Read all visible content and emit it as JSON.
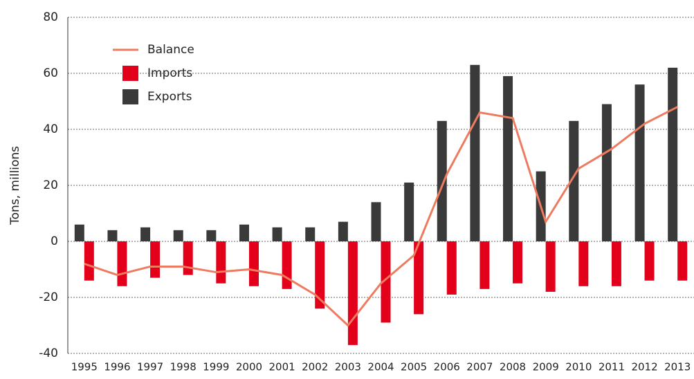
{
  "chart_data": {
    "type": "bar",
    "y_label": "Tons, millions",
    "categories": [
      "1995",
      "1996",
      "1997",
      "1998",
      "1999",
      "2000",
      "2001",
      "2002",
      "2003",
      "2004",
      "2005",
      "2006",
      "2007",
      "2008",
      "2009",
      "2010",
      "2011",
      "2012",
      "2013"
    ],
    "series": [
      {
        "name": "Balance",
        "type": "line",
        "color": "#ee7b5f",
        "values": [
          -8,
          -12,
          -9,
          -9,
          -11,
          -10,
          -12,
          -19,
          -30,
          -15,
          -5,
          24,
          46,
          44,
          7,
          26,
          33,
          42,
          48
        ]
      },
      {
        "name": "Imports",
        "type": "bar",
        "color": "#e2001a",
        "values": [
          -14,
          -16,
          -13,
          -12,
          -15,
          -16,
          -17,
          -24,
          -37,
          -29,
          -26,
          -19,
          -17,
          -15,
          -18,
          -16,
          -16,
          -14,
          -14
        ]
      },
      {
        "name": "Exports",
        "type": "bar",
        "color": "#3a3a3a",
        "values": [
          6,
          4,
          5,
          4,
          4,
          6,
          5,
          5,
          7,
          14,
          21,
          43,
          63,
          59,
          25,
          43,
          49,
          56,
          62
        ]
      }
    ],
    "ylim": [
      -40,
      80
    ],
    "yticks": [
      -40,
      -20,
      0,
      20,
      40,
      60,
      80
    ],
    "grid": true,
    "legend": "top-left"
  }
}
